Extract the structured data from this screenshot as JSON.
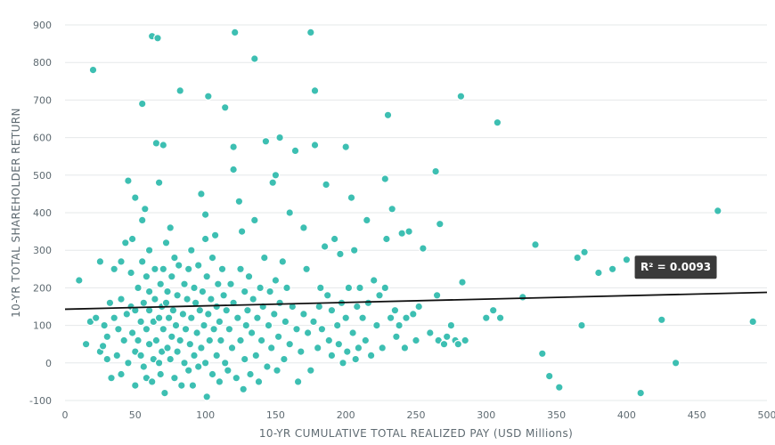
{
  "chart_data": {
    "type": "scatter",
    "title": "",
    "xlabel": "10-YR CUMULATIVE TOTAL REALIZED PAY (USD Millions)",
    "ylabel": "10-YR TOTAL SHAREHOLDER RETURN",
    "xlim": [
      0,
      500
    ],
    "ylim": [
      -100,
      900
    ],
    "x_ticks": [
      0,
      50,
      100,
      150,
      200,
      250,
      300,
      350,
      400,
      450,
      500
    ],
    "y_ticks": [
      -100,
      0,
      100,
      200,
      300,
      400,
      500,
      600,
      700,
      800,
      900
    ],
    "grid": true,
    "colors": {
      "points": "#3dbfb2",
      "trendline": "#111111",
      "annotation_bg": "#3a3a3a"
    },
    "trendline": {
      "x": [
        0,
        500
      ],
      "y": [
        143,
        188
      ]
    },
    "annotation": {
      "text": "R² = 0.0093",
      "x": 435,
      "y": 255
    },
    "points": [
      [
        10,
        220
      ],
      [
        15,
        50
      ],
      [
        18,
        110
      ],
      [
        20,
        780
      ],
      [
        22,
        120
      ],
      [
        25,
        30
      ],
      [
        25,
        270
      ],
      [
        27,
        45
      ],
      [
        28,
        100
      ],
      [
        30,
        10
      ],
      [
        30,
        70
      ],
      [
        32,
        160
      ],
      [
        33,
        -40
      ],
      [
        35,
        120
      ],
      [
        35,
        250
      ],
      [
        37,
        20
      ],
      [
        38,
        90
      ],
      [
        40,
        -30
      ],
      [
        40,
        170
      ],
      [
        40,
        270
      ],
      [
        42,
        60
      ],
      [
        43,
        320
      ],
      [
        44,
        130
      ],
      [
        45,
        485
      ],
      [
        45,
        0
      ],
      [
        47,
        150
      ],
      [
        47,
        240
      ],
      [
        48,
        80
      ],
      [
        48,
        330
      ],
      [
        50,
        -60
      ],
      [
        50,
        30
      ],
      [
        50,
        140
      ],
      [
        50,
        440
      ],
      [
        52,
        60
      ],
      [
        52,
        200
      ],
      [
        54,
        110
      ],
      [
        54,
        20
      ],
      [
        55,
        690
      ],
      [
        55,
        380
      ],
      [
        55,
        270
      ],
      [
        56,
        -10
      ],
      [
        56,
        160
      ],
      [
        57,
        410
      ],
      [
        58,
        90
      ],
      [
        58,
        230
      ],
      [
        58,
        -40
      ],
      [
        60,
        50
      ],
      [
        60,
        140
      ],
      [
        60,
        190
      ],
      [
        60,
        300
      ],
      [
        62,
        870
      ],
      [
        62,
        -50
      ],
      [
        63,
        10
      ],
      [
        63,
        110
      ],
      [
        64,
        170
      ],
      [
        64,
        250
      ],
      [
        65,
        585
      ],
      [
        65,
        60
      ],
      [
        66,
        865
      ],
      [
        67,
        0
      ],
      [
        67,
        120
      ],
      [
        67,
        480
      ],
      [
        68,
        210
      ],
      [
        68,
        -30
      ],
      [
        69,
        30
      ],
      [
        69,
        150
      ],
      [
        70,
        580
      ],
      [
        70,
        90
      ],
      [
        70,
        250
      ],
      [
        71,
        -80
      ],
      [
        72,
        160
      ],
      [
        72,
        320
      ],
      [
        73,
        40
      ],
      [
        73,
        190
      ],
      [
        74,
        120
      ],
      [
        75,
        10
      ],
      [
        75,
        360
      ],
      [
        76,
        70
      ],
      [
        76,
        230
      ],
      [
        77,
        140
      ],
      [
        78,
        -40
      ],
      [
        78,
        280
      ],
      [
        79,
        100
      ],
      [
        80,
        30
      ],
      [
        80,
        180
      ],
      [
        81,
        260
      ],
      [
        82,
        725
      ],
      [
        82,
        60
      ],
      [
        83,
        -60
      ],
      [
        84,
        130
      ],
      [
        85,
        210
      ],
      [
        85,
        0
      ],
      [
        86,
        90
      ],
      [
        87,
        170
      ],
      [
        88,
        -20
      ],
      [
        88,
        250
      ],
      [
        89,
        50
      ],
      [
        90,
        120
      ],
      [
        90,
        300
      ],
      [
        91,
        -60
      ],
      [
        92,
        200
      ],
      [
        92,
        20
      ],
      [
        93,
        160
      ],
      [
        94,
        80
      ],
      [
        95,
        260
      ],
      [
        95,
        -10
      ],
      [
        96,
        140
      ],
      [
        97,
        40
      ],
      [
        97,
        450
      ],
      [
        98,
        190
      ],
      [
        99,
        100
      ],
      [
        100,
        0
      ],
      [
        100,
        395
      ],
      [
        100,
        330
      ],
      [
        101,
        230
      ],
      [
        101,
        -90
      ],
      [
        102,
        130
      ],
      [
        102,
        710
      ],
      [
        103,
        60
      ],
      [
        104,
        170
      ],
      [
        105,
        -30
      ],
      [
        105,
        280
      ],
      [
        106,
        90
      ],
      [
        107,
        340
      ],
      [
        108,
        150
      ],
      [
        108,
        20
      ],
      [
        109,
        210
      ],
      [
        110,
        -50
      ],
      [
        110,
        110
      ],
      [
        111,
        60
      ],
      [
        112,
        250
      ],
      [
        113,
        180
      ],
      [
        114,
        680
      ],
      [
        114,
        0
      ],
      [
        115,
        140
      ],
      [
        116,
        -20
      ],
      [
        117,
        90
      ],
      [
        118,
        210
      ],
      [
        119,
        40
      ],
      [
        120,
        575
      ],
      [
        120,
        515
      ],
      [
        120,
        160
      ],
      [
        121,
        880
      ],
      [
        122,
        -40
      ],
      [
        123,
        120
      ],
      [
        124,
        430
      ],
      [
        125,
        60
      ],
      [
        125,
        250
      ],
      [
        126,
        350
      ],
      [
        127,
        -70
      ],
      [
        128,
        190
      ],
      [
        128,
        10
      ],
      [
        129,
        100
      ],
      [
        130,
        140
      ],
      [
        131,
        230
      ],
      [
        132,
        -30
      ],
      [
        133,
        80
      ],
      [
        134,
        170
      ],
      [
        135,
        810
      ],
      [
        135,
        380
      ],
      [
        136,
        20
      ],
      [
        137,
        120
      ],
      [
        138,
        -50
      ],
      [
        139,
        200
      ],
      [
        140,
        60
      ],
      [
        141,
        150
      ],
      [
        142,
        280
      ],
      [
        143,
        590
      ],
      [
        144,
        -10
      ],
      [
        145,
        100
      ],
      [
        146,
        190
      ],
      [
        147,
        40
      ],
      [
        148,
        480
      ],
      [
        149,
        130
      ],
      [
        150,
        500
      ],
      [
        150,
        220
      ],
      [
        151,
        -20
      ],
      [
        152,
        70
      ],
      [
        153,
        600
      ],
      [
        153,
        160
      ],
      [
        155,
        270
      ],
      [
        156,
        10
      ],
      [
        157,
        110
      ],
      [
        158,
        200
      ],
      [
        160,
        50
      ],
      [
        160,
        400
      ],
      [
        162,
        150
      ],
      [
        164,
        565
      ],
      [
        165,
        90
      ],
      [
        166,
        -50
      ],
      [
        168,
        30
      ],
      [
        170,
        360
      ],
      [
        170,
        130
      ],
      [
        172,
        250
      ],
      [
        173,
        80
      ],
      [
        175,
        880
      ],
      [
        175,
        -20
      ],
      [
        177,
        110
      ],
      [
        178,
        725
      ],
      [
        178,
        580
      ],
      [
        180,
        40
      ],
      [
        181,
        150
      ],
      [
        182,
        200
      ],
      [
        183,
        90
      ],
      [
        185,
        310
      ],
      [
        186,
        475
      ],
      [
        187,
        180
      ],
      [
        188,
        60
      ],
      [
        190,
        20
      ],
      [
        190,
        140
      ],
      [
        192,
        330
      ],
      [
        194,
        100
      ],
      [
        195,
        50
      ],
      [
        196,
        290
      ],
      [
        197,
        160
      ],
      [
        198,
        0
      ],
      [
        200,
        575
      ],
      [
        200,
        120
      ],
      [
        201,
        30
      ],
      [
        202,
        200
      ],
      [
        204,
        440
      ],
      [
        205,
        80
      ],
      [
        206,
        300
      ],
      [
        207,
        10
      ],
      [
        208,
        150
      ],
      [
        209,
        40
      ],
      [
        210,
        200
      ],
      [
        212,
        120
      ],
      [
        214,
        60
      ],
      [
        215,
        380
      ],
      [
        216,
        160
      ],
      [
        218,
        20
      ],
      [
        220,
        220
      ],
      [
        222,
        100
      ],
      [
        224,
        180
      ],
      [
        226,
        40
      ],
      [
        228,
        490
      ],
      [
        228,
        200
      ],
      [
        229,
        330
      ],
      [
        230,
        660
      ],
      [
        232,
        120
      ],
      [
        233,
        410
      ],
      [
        235,
        140
      ],
      [
        236,
        70
      ],
      [
        238,
        100
      ],
      [
        240,
        345
      ],
      [
        242,
        40
      ],
      [
        243,
        120
      ],
      [
        245,
        350
      ],
      [
        248,
        130
      ],
      [
        250,
        60
      ],
      [
        252,
        150
      ],
      [
        255,
        305
      ],
      [
        260,
        80
      ],
      [
        264,
        510
      ],
      [
        265,
        180
      ],
      [
        266,
        60
      ],
      [
        267,
        370
      ],
      [
        270,
        50
      ],
      [
        272,
        70
      ],
      [
        275,
        100
      ],
      [
        278,
        60
      ],
      [
        280,
        50
      ],
      [
        282,
        710
      ],
      [
        283,
        215
      ],
      [
        285,
        60
      ],
      [
        300,
        120
      ],
      [
        305,
        140
      ],
      [
        308,
        640
      ],
      [
        310,
        120
      ],
      [
        326,
        175
      ],
      [
        335,
        315
      ],
      [
        340,
        25
      ],
      [
        345,
        -35
      ],
      [
        352,
        -65
      ],
      [
        365,
        280
      ],
      [
        368,
        100
      ],
      [
        370,
        295
      ],
      [
        380,
        240
      ],
      [
        390,
        250
      ],
      [
        400,
        275
      ],
      [
        410,
        -80
      ],
      [
        425,
        115
      ],
      [
        435,
        0
      ],
      [
        465,
        405
      ],
      [
        490,
        110
      ]
    ]
  }
}
